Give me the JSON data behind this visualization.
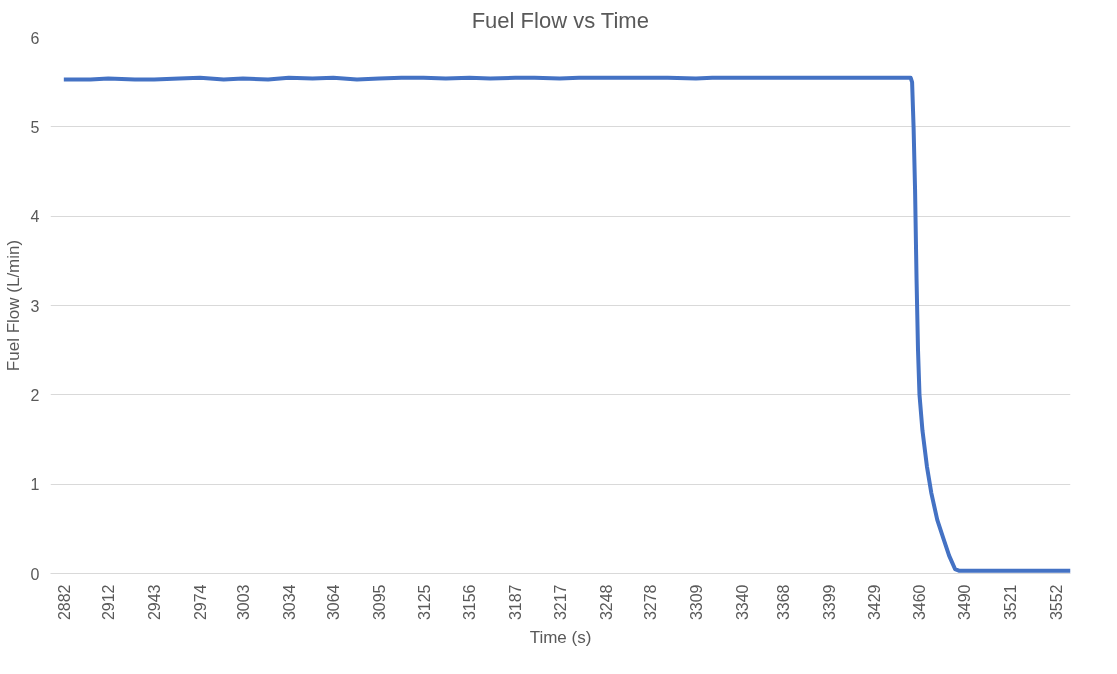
{
  "chart_data": {
    "type": "line",
    "title": "Fuel Flow vs Time",
    "xlabel": "Time (s)",
    "ylabel": "Fuel Flow (L/min)",
    "x": [
      2882,
      2900,
      2912,
      2930,
      2943,
      2960,
      2974,
      2990,
      3003,
      3020,
      3034,
      3050,
      3064,
      3080,
      3095,
      3110,
      3125,
      3140,
      3156,
      3170,
      3187,
      3200,
      3217,
      3230,
      3248,
      3260,
      3278,
      3290,
      3309,
      3320,
      3340,
      3355,
      3368,
      3385,
      3399,
      3415,
      3429,
      3445,
      3452,
      3454,
      3455,
      3456,
      3457,
      3458,
      3459,
      3460,
      3462,
      3465,
      3468,
      3472,
      3476,
      3480,
      3484,
      3487,
      3490,
      3500,
      3521,
      3540,
      3552,
      3562
    ],
    "series": [
      {
        "color": "#4472c4",
        "values": [
          5.53,
          5.53,
          5.54,
          5.53,
          5.53,
          5.54,
          5.55,
          5.53,
          5.54,
          5.53,
          5.55,
          5.54,
          5.55,
          5.53,
          5.54,
          5.55,
          5.55,
          5.54,
          5.55,
          5.54,
          5.55,
          5.55,
          5.54,
          5.55,
          5.55,
          5.55,
          5.55,
          5.55,
          5.54,
          5.55,
          5.55,
          5.55,
          5.55,
          5.55,
          5.55,
          5.55,
          5.55,
          5.55,
          5.55,
          5.55,
          5.5,
          5.0,
          4.3,
          3.3,
          2.5,
          2.0,
          1.6,
          1.2,
          0.9,
          0.6,
          0.4,
          0.2,
          0.05,
          0.03,
          0.03,
          0.03,
          0.03,
          0.03,
          0.03,
          0.03
        ]
      }
    ],
    "xlim": [
      2873,
      3562
    ],
    "xticks": [
      2882,
      2912,
      2943,
      2974,
      3003,
      3034,
      3064,
      3095,
      3125,
      3156,
      3187,
      3217,
      3248,
      3278,
      3309,
      3340,
      3368,
      3399,
      3429,
      3460,
      3490,
      3521,
      3552
    ],
    "ylim": [
      0,
      6
    ],
    "yticks": [
      0,
      1,
      2,
      3,
      4,
      5,
      6
    ],
    "grid": "y",
    "marker": "none",
    "line_style": "solid"
  }
}
